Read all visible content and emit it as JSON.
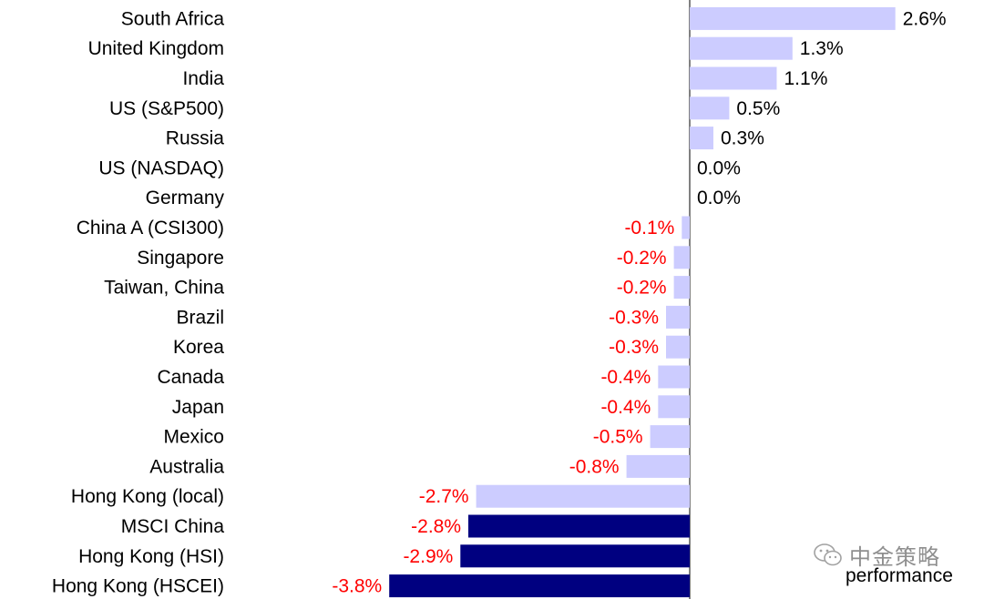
{
  "chart_data": {
    "type": "bar",
    "orientation": "horizontal",
    "categories": [
      "South Africa",
      "United Kingdom",
      "India",
      "US (S&P500)",
      "Russia",
      "US (NASDAQ)",
      "Germany",
      "China A (CSI300)",
      "Singapore",
      "Taiwan, China",
      "Brazil",
      "Korea",
      "Canada",
      "Japan",
      "Mexico",
      "Australia",
      "Hong Kong (local)",
      "MSCI China",
      "Hong Kong (HSI)",
      "Hong Kong (HSCEI)"
    ],
    "values": [
      2.6,
      1.3,
      1.1,
      0.5,
      0.3,
      0.0,
      0.0,
      -0.1,
      -0.2,
      -0.2,
      -0.3,
      -0.3,
      -0.4,
      -0.4,
      -0.5,
      -0.8,
      -2.7,
      -2.8,
      -2.9,
      -3.8
    ],
    "value_labels": [
      "2.6%",
      "1.3%",
      "1.1%",
      "0.5%",
      "0.3%",
      "0.0%",
      "0.0%",
      "-0.1%",
      "-0.2%",
      "-0.2%",
      "-0.3%",
      "-0.3%",
      "-0.4%",
      "-0.4%",
      "-0.5%",
      "-0.8%",
      "-2.7%",
      "-2.8%",
      "-2.9%",
      "-3.8%"
    ],
    "highlighted": [
      false,
      false,
      false,
      false,
      false,
      false,
      false,
      false,
      false,
      false,
      false,
      false,
      false,
      false,
      false,
      false,
      false,
      true,
      true,
      true
    ],
    "xlim": [
      -3.8,
      2.6
    ],
    "grid": false,
    "colors": {
      "bar_default": "#CCCCFF",
      "bar_highlight": "#000080",
      "positive_label": "#000000",
      "negative_label": "#FF0000",
      "axis": "#000000"
    }
  },
  "watermark": {
    "text": "中金策略",
    "icon": "wechat-icon"
  },
  "legend_fragment": "performance"
}
